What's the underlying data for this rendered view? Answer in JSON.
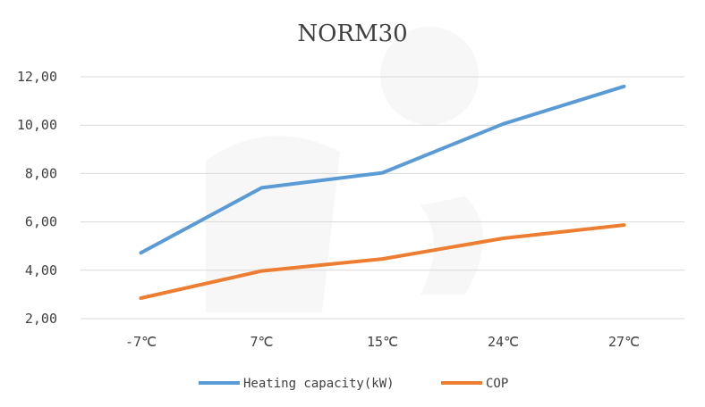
{
  "chart_data": {
    "type": "line",
    "title": "NORM30",
    "categories": [
      "-7℃",
      "7℃",
      "15℃",
      "24℃",
      "27℃"
    ],
    "series": [
      {
        "name": "Heating capacity(kW)",
        "color": "#5b9bd5",
        "values": [
          4.72,
          7.41,
          8.03,
          10.05,
          11.6
        ]
      },
      {
        "name": "COP",
        "color": "#ed7d31",
        "values": [
          2.85,
          3.97,
          4.47,
          5.32,
          5.87
        ]
      }
    ],
    "y_ticks": [
      "2,00",
      "4,00",
      "6,00",
      "8,00",
      "10,00",
      "12,00"
    ],
    "ylim": [
      2,
      12
    ],
    "grid": true,
    "legend_position": "bottom"
  }
}
